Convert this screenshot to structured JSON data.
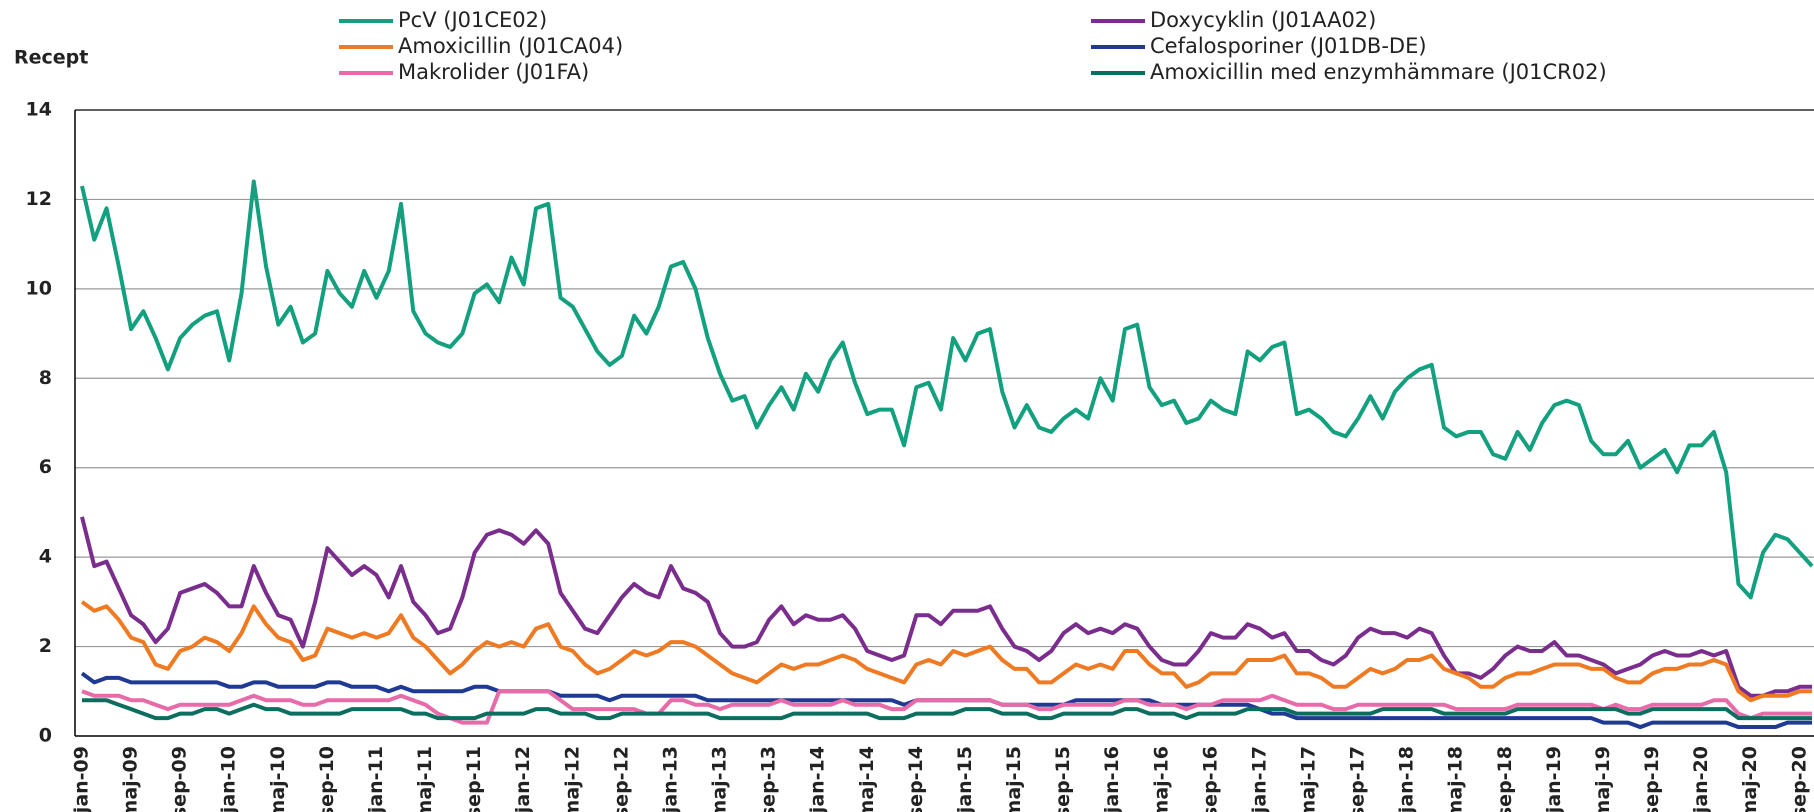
{
  "chart_data": {
    "type": "line",
    "ylabel": "Recept",
    "categories": [
      "jan-09",
      null,
      null,
      null,
      "maj-09",
      null,
      null,
      null,
      "sep-09",
      null,
      null,
      null,
      "jan-10",
      null,
      null,
      null,
      "maj-10",
      null,
      null,
      null,
      "sep-10",
      null,
      null,
      null,
      "jan-11",
      null,
      null,
      null,
      "maj-11",
      null,
      null,
      null,
      "sep-11",
      null,
      null,
      null,
      "jan-12",
      null,
      null,
      null,
      "maj-12",
      null,
      null,
      null,
      "sep-12",
      null,
      null,
      null,
      "jan-13",
      null,
      null,
      null,
      "maj-13",
      null,
      null,
      null,
      "sep-13",
      null,
      null,
      null,
      "jan-14",
      null,
      null,
      null,
      "maj-14",
      null,
      null,
      null,
      "sep-14",
      null,
      null,
      null,
      "jan-15",
      null,
      null,
      null,
      "maj-15",
      null,
      null,
      null,
      "sep-15",
      null,
      null,
      null,
      "jan-16",
      null,
      null,
      null,
      "maj-16",
      null,
      null,
      null,
      "sep-16",
      null,
      null,
      null,
      "jan-17",
      null,
      null,
      null,
      "maj-17",
      null,
      null,
      null,
      "sep-17",
      null,
      null,
      null,
      "jan-18",
      null,
      null,
      null,
      "maj-18",
      null,
      null,
      null,
      "sep-18",
      null,
      null,
      null,
      "jan-19",
      null,
      null,
      null,
      "maj-19",
      null,
      null,
      null,
      "sep-19",
      null,
      null,
      null,
      "jan-20",
      null,
      null,
      null,
      "maj-20",
      null,
      null,
      null,
      "sep-20",
      null
    ],
    "series": [
      {
        "name": "PcV (J01CE02)",
        "color": "#13a07e",
        "values": [
          12.3,
          11.1,
          11.8,
          10.5,
          9.1,
          9.5,
          8.9,
          8.2,
          8.9,
          9.2,
          9.4,
          9.5,
          8.4,
          9.9,
          12.4,
          10.5,
          9.2,
          9.6,
          8.8,
          9.0,
          10.4,
          9.9,
          9.6,
          10.4,
          9.8,
          10.4,
          11.9,
          9.5,
          9.0,
          8.8,
          8.7,
          9.0,
          9.9,
          10.1,
          9.7,
          10.7,
          10.1,
          11.8,
          11.9,
          9.8,
          9.6,
          9.1,
          8.6,
          8.3,
          8.5,
          9.4,
          9.0,
          9.6,
          10.5,
          10.6,
          10.0,
          8.9,
          8.1,
          7.5,
          7.6,
          6.9,
          7.4,
          7.8,
          7.3,
          8.1,
          7.7,
          8.4,
          8.8,
          7.9,
          7.2,
          7.3,
          7.3,
          6.5,
          7.8,
          7.9,
          7.3,
          8.9,
          8.4,
          9.0,
          9.1,
          7.7,
          6.9,
          7.4,
          6.9,
          6.8,
          7.1,
          7.3,
          7.1,
          8.0,
          7.5,
          9.1,
          9.2,
          7.8,
          7.4,
          7.5,
          7.0,
          7.1,
          7.5,
          7.3,
          7.2,
          8.6,
          8.4,
          8.7,
          8.8,
          7.2,
          7.3,
          7.1,
          6.8,
          6.7,
          7.1,
          7.6,
          7.1,
          7.7,
          8.0,
          8.2,
          8.3,
          6.9,
          6.7,
          6.8,
          6.8,
          6.3,
          6.2,
          6.8,
          6.4,
          7.0,
          7.4,
          7.5,
          7.4,
          6.6,
          6.3,
          6.3,
          6.6,
          6.0,
          6.2,
          6.4,
          5.9,
          6.5,
          6.5,
          6.8,
          5.9,
          3.4,
          3.1,
          4.1,
          4.5,
          4.4,
          4.1,
          3.8
        ]
      },
      {
        "name": "Doxycyklin (J01AA02)",
        "color": "#7b2d8e",
        "values": [
          4.9,
          3.8,
          3.9,
          3.3,
          2.7,
          2.5,
          2.1,
          2.4,
          3.2,
          3.3,
          3.4,
          3.2,
          2.9,
          2.9,
          3.8,
          3.2,
          2.7,
          2.6,
          2.0,
          3.0,
          4.2,
          3.9,
          3.6,
          3.8,
          3.6,
          3.1,
          3.8,
          3.0,
          2.7,
          2.3,
          2.4,
          3.1,
          4.1,
          4.5,
          4.6,
          4.5,
          4.3,
          4.6,
          4.3,
          3.2,
          2.8,
          2.4,
          2.3,
          2.7,
          3.1,
          3.4,
          3.2,
          3.1,
          3.8,
          3.3,
          3.2,
          3.0,
          2.3,
          2.0,
          2.0,
          2.1,
          2.6,
          2.9,
          2.5,
          2.7,
          2.6,
          2.6,
          2.7,
          2.4,
          1.9,
          1.8,
          1.7,
          1.8,
          2.7,
          2.7,
          2.5,
          2.8,
          2.8,
          2.8,
          2.9,
          2.4,
          2.0,
          1.9,
          1.7,
          1.9,
          2.3,
          2.5,
          2.3,
          2.4,
          2.3,
          2.5,
          2.4,
          2.0,
          1.7,
          1.6,
          1.6,
          1.9,
          2.3,
          2.2,
          2.2,
          2.5,
          2.4,
          2.2,
          2.3,
          1.9,
          1.9,
          1.7,
          1.6,
          1.8,
          2.2,
          2.4,
          2.3,
          2.3,
          2.2,
          2.4,
          2.3,
          1.8,
          1.4,
          1.4,
          1.3,
          1.5,
          1.8,
          2.0,
          1.9,
          1.9,
          2.1,
          1.8,
          1.8,
          1.7,
          1.6,
          1.4,
          1.5,
          1.6,
          1.8,
          1.9,
          1.8,
          1.8,
          1.9,
          1.8,
          1.9,
          1.1,
          0.9,
          0.9,
          1.0,
          1.0,
          1.1,
          1.1
        ]
      },
      {
        "name": "Amoxicillin (J01CA04)",
        "color": "#f07a22",
        "values": [
          3.0,
          2.8,
          2.9,
          2.6,
          2.2,
          2.1,
          1.6,
          1.5,
          1.9,
          2.0,
          2.2,
          2.1,
          1.9,
          2.3,
          2.9,
          2.5,
          2.2,
          2.1,
          1.7,
          1.8,
          2.4,
          2.3,
          2.2,
          2.3,
          2.2,
          2.3,
          2.7,
          2.2,
          2.0,
          1.7,
          1.4,
          1.6,
          1.9,
          2.1,
          2.0,
          2.1,
          2.0,
          2.4,
          2.5,
          2.0,
          1.9,
          1.6,
          1.4,
          1.5,
          1.7,
          1.9,
          1.8,
          1.9,
          2.1,
          2.1,
          2.0,
          1.8,
          1.6,
          1.4,
          1.3,
          1.2,
          1.4,
          1.6,
          1.5,
          1.6,
          1.6,
          1.7,
          1.8,
          1.7,
          1.5,
          1.4,
          1.3,
          1.2,
          1.6,
          1.7,
          1.6,
          1.9,
          1.8,
          1.9,
          2.0,
          1.7,
          1.5,
          1.5,
          1.2,
          1.2,
          1.4,
          1.6,
          1.5,
          1.6,
          1.5,
          1.9,
          1.9,
          1.6,
          1.4,
          1.4,
          1.1,
          1.2,
          1.4,
          1.4,
          1.4,
          1.7,
          1.7,
          1.7,
          1.8,
          1.4,
          1.4,
          1.3,
          1.1,
          1.1,
          1.3,
          1.5,
          1.4,
          1.5,
          1.7,
          1.7,
          1.8,
          1.5,
          1.4,
          1.3,
          1.1,
          1.1,
          1.3,
          1.4,
          1.4,
          1.5,
          1.6,
          1.6,
          1.6,
          1.5,
          1.5,
          1.3,
          1.2,
          1.2,
          1.4,
          1.5,
          1.5,
          1.6,
          1.6,
          1.7,
          1.6,
          1.0,
          0.8,
          0.9,
          0.9,
          0.9,
          1.0,
          1.0
        ]
      },
      {
        "name": "Cefalosporiner (J01DB-DE)",
        "color": "#1f3a93",
        "values": [
          1.4,
          1.2,
          1.3,
          1.3,
          1.2,
          1.2,
          1.2,
          1.2,
          1.2,
          1.2,
          1.2,
          1.2,
          1.1,
          1.1,
          1.2,
          1.2,
          1.1,
          1.1,
          1.1,
          1.1,
          1.2,
          1.2,
          1.1,
          1.1,
          1.1,
          1.0,
          1.1,
          1.0,
          1.0,
          1.0,
          1.0,
          1.0,
          1.1,
          1.1,
          1.0,
          1.0,
          1.0,
          1.0,
          1.0,
          0.9,
          0.9,
          0.9,
          0.9,
          0.8,
          0.9,
          0.9,
          0.9,
          0.9,
          0.9,
          0.9,
          0.9,
          0.8,
          0.8,
          0.8,
          0.8,
          0.8,
          0.8,
          0.8,
          0.8,
          0.8,
          0.8,
          0.8,
          0.8,
          0.8,
          0.8,
          0.8,
          0.8,
          0.7,
          0.8,
          0.8,
          0.8,
          0.8,
          0.8,
          0.8,
          0.8,
          0.7,
          0.7,
          0.7,
          0.7,
          0.7,
          0.7,
          0.8,
          0.8,
          0.8,
          0.8,
          0.8,
          0.8,
          0.8,
          0.7,
          0.7,
          0.7,
          0.7,
          0.7,
          0.7,
          0.7,
          0.7,
          0.6,
          0.5,
          0.5,
          0.4,
          0.4,
          0.4,
          0.4,
          0.4,
          0.4,
          0.4,
          0.4,
          0.4,
          0.4,
          0.4,
          0.4,
          0.4,
          0.4,
          0.4,
          0.4,
          0.4,
          0.4,
          0.4,
          0.4,
          0.4,
          0.4,
          0.4,
          0.4,
          0.4,
          0.3,
          0.3,
          0.3,
          0.2,
          0.3,
          0.3,
          0.3,
          0.3,
          0.3,
          0.3,
          0.3,
          0.2,
          0.2,
          0.2,
          0.2,
          0.3,
          0.3,
          0.3
        ]
      },
      {
        "name": "Makrolider (J01FA)",
        "color": "#e86aa8",
        "values": [
          1.0,
          0.9,
          0.9,
          0.9,
          0.8,
          0.8,
          0.7,
          0.6,
          0.7,
          0.7,
          0.7,
          0.7,
          0.7,
          0.8,
          0.9,
          0.8,
          0.8,
          0.8,
          0.7,
          0.7,
          0.8,
          0.8,
          0.8,
          0.8,
          0.8,
          0.8,
          0.9,
          0.8,
          0.7,
          0.5,
          0.4,
          0.3,
          0.3,
          0.3,
          1.0,
          1.0,
          1.0,
          1.0,
          1.0,
          0.8,
          0.6,
          0.6,
          0.6,
          0.6,
          0.6,
          0.6,
          0.5,
          0.5,
          0.8,
          0.8,
          0.7,
          0.7,
          0.6,
          0.7,
          0.7,
          0.7,
          0.7,
          0.8,
          0.7,
          0.7,
          0.7,
          0.7,
          0.8,
          0.7,
          0.7,
          0.7,
          0.6,
          0.6,
          0.8,
          0.8,
          0.8,
          0.8,
          0.8,
          0.8,
          0.8,
          0.7,
          0.7,
          0.7,
          0.6,
          0.6,
          0.7,
          0.7,
          0.7,
          0.7,
          0.7,
          0.8,
          0.8,
          0.7,
          0.7,
          0.7,
          0.6,
          0.7,
          0.7,
          0.8,
          0.8,
          0.8,
          0.8,
          0.9,
          0.8,
          0.7,
          0.7,
          0.7,
          0.6,
          0.6,
          0.7,
          0.7,
          0.7,
          0.7,
          0.7,
          0.7,
          0.7,
          0.7,
          0.6,
          0.6,
          0.6,
          0.6,
          0.6,
          0.7,
          0.7,
          0.7,
          0.7,
          0.7,
          0.7,
          0.7,
          0.6,
          0.7,
          0.6,
          0.6,
          0.7,
          0.7,
          0.7,
          0.7,
          0.7,
          0.8,
          0.8,
          0.5,
          0.4,
          0.5,
          0.5,
          0.5,
          0.5,
          0.5
        ]
      },
      {
        "name": "Amoxicillin med enzymhämmare (J01CR02)",
        "color": "#0b6e5f",
        "values": [
          0.8,
          0.8,
          0.8,
          0.7,
          0.6,
          0.5,
          0.4,
          0.4,
          0.5,
          0.5,
          0.6,
          0.6,
          0.5,
          0.6,
          0.7,
          0.6,
          0.6,
          0.5,
          0.5,
          0.5,
          0.5,
          0.5,
          0.6,
          0.6,
          0.6,
          0.6,
          0.6,
          0.5,
          0.5,
          0.4,
          0.4,
          0.4,
          0.4,
          0.5,
          0.5,
          0.5,
          0.5,
          0.6,
          0.6,
          0.5,
          0.5,
          0.5,
          0.4,
          0.4,
          0.5,
          0.5,
          0.5,
          0.5,
          0.5,
          0.5,
          0.5,
          0.5,
          0.4,
          0.4,
          0.4,
          0.4,
          0.4,
          0.4,
          0.5,
          0.5,
          0.5,
          0.5,
          0.5,
          0.5,
          0.5,
          0.4,
          0.4,
          0.4,
          0.5,
          0.5,
          0.5,
          0.5,
          0.6,
          0.6,
          0.6,
          0.5,
          0.5,
          0.5,
          0.4,
          0.4,
          0.5,
          0.5,
          0.5,
          0.5,
          0.5,
          0.6,
          0.6,
          0.5,
          0.5,
          0.5,
          0.4,
          0.5,
          0.5,
          0.5,
          0.5,
          0.6,
          0.6,
          0.6,
          0.6,
          0.5,
          0.5,
          0.5,
          0.5,
          0.5,
          0.5,
          0.5,
          0.6,
          0.6,
          0.6,
          0.6,
          0.6,
          0.5,
          0.5,
          0.5,
          0.5,
          0.5,
          0.5,
          0.6,
          0.6,
          0.6,
          0.6,
          0.6,
          0.6,
          0.6,
          0.6,
          0.6,
          0.5,
          0.5,
          0.6,
          0.6,
          0.6,
          0.6,
          0.6,
          0.6,
          0.6,
          0.4,
          0.4,
          0.4,
          0.4,
          0.4,
          0.4,
          0.4
        ]
      }
    ],
    "ylim": [
      0,
      14
    ],
    "yticks": [
      0,
      2,
      4,
      6,
      8,
      10,
      12,
      14
    ],
    "grid": true
  }
}
